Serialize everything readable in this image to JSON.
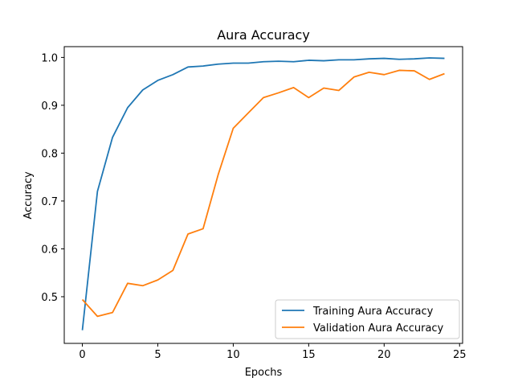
{
  "chart_data": {
    "type": "line",
    "title": "Aura Accuracy",
    "xlabel": "Epochs",
    "ylabel": "Accuracy",
    "x": [
      0,
      1,
      2,
      3,
      4,
      5,
      6,
      7,
      8,
      9,
      10,
      11,
      12,
      13,
      14,
      15,
      16,
      17,
      18,
      19,
      20,
      21,
      22,
      23,
      24
    ],
    "xlim": [
      -1.2,
      25.2
    ],
    "ylim": [
      0.4025,
      1.0225
    ],
    "xticks": [
      0,
      5,
      10,
      15,
      20,
      25
    ],
    "yticks": [
      0.5,
      0.6,
      0.7,
      0.8,
      0.9,
      1.0
    ],
    "xtick_labels": [
      "0",
      "5",
      "10",
      "15",
      "20",
      "25"
    ],
    "ytick_labels": [
      "0.5",
      "0.6",
      "0.7",
      "0.8",
      "0.9",
      "1.0"
    ],
    "grid": false,
    "legend_position": "lower-right",
    "series": [
      {
        "name": "Training Aura Accuracy",
        "color": "#1f77b4",
        "values": [
          0.43,
          0.72,
          0.833,
          0.895,
          0.932,
          0.952,
          0.964,
          0.98,
          0.982,
          0.986,
          0.988,
          0.988,
          0.991,
          0.992,
          0.991,
          0.994,
          0.993,
          0.995,
          0.995,
          0.997,
          0.998,
          0.996,
          0.997,
          0.999,
          0.998
        ]
      },
      {
        "name": "Validation Aura Accuracy",
        "color": "#ff7f0e",
        "values": [
          0.494,
          0.459,
          0.467,
          0.528,
          0.523,
          0.535,
          0.555,
          0.631,
          0.642,
          0.755,
          0.852,
          0.884,
          0.916,
          0.926,
          0.937,
          0.916,
          0.936,
          0.931,
          0.959,
          0.969,
          0.964,
          0.973,
          0.972,
          0.954,
          0.966
        ]
      }
    ]
  }
}
